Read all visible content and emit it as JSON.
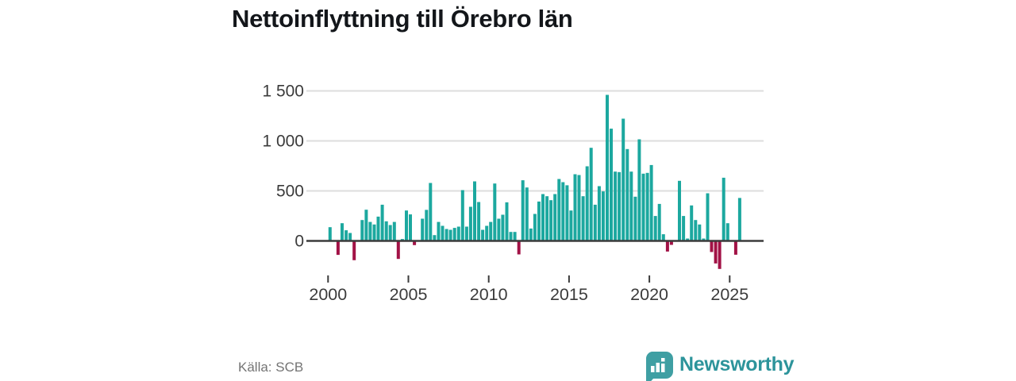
{
  "header": {
    "title": "Nettoinflyttning till Örebro län"
  },
  "footer": {
    "source": "Källa: SCB",
    "brand": "Newsworthy",
    "brand_icon": "bar-chart-speech-bubble-icon"
  },
  "colors": {
    "positive_bar": "#1ca89f",
    "negative_bar": "#a21246",
    "gridline": "#dddddd",
    "axis": "#3b3b3b",
    "title_text": "#13161a",
    "source_text": "#747474",
    "brand_teal": "#3f9fa3",
    "brand_text": "#2d949b"
  },
  "chart_data": {
    "type": "bar",
    "title": "Nettoinflyttning till Örebro län",
    "frequency": "quarterly",
    "start_period": "2000-Q1",
    "end_period": "2025-Q3",
    "xlabel": "",
    "ylabel": "",
    "legend": "none",
    "grid": "horizontal",
    "ylim": [
      -400,
      1575
    ],
    "x_ticks": {
      "values": [
        2000,
        2005,
        2010,
        2015,
        2020,
        2025
      ],
      "labels": [
        "2000",
        "2005",
        "2010",
        "2015",
        "2020",
        "2025"
      ]
    },
    "y_ticks": {
      "values": [
        0,
        500,
        1000,
        1500
      ],
      "labels": [
        "0",
        "500",
        "1 000",
        "1 500"
      ]
    },
    "series": [
      {
        "name": "Nettoinflyttning till Örebro län",
        "values": [
          137,
          0,
          -140,
          177,
          106,
          79,
          -193,
          0,
          209,
          312,
          190,
          164,
          243,
          362,
          196,
          159,
          190,
          -180,
          19,
          304,
          265,
          -42,
          0,
          222,
          310,
          579,
          58,
          190,
          151,
          119,
          111,
          130,
          143,
          508,
          143,
          341,
          595,
          389,
          111,
          151,
          190,
          574,
          222,
          262,
          386,
          90,
          90,
          -135,
          606,
          534,
          124,
          270,
          394,
          468,
          447,
          407,
          468,
          619,
          587,
          556,
          304,
          667,
          659,
          447,
          746,
          931,
          362,
          548,
          495,
          1460,
          1122,
          693,
          688,
          1222,
          918,
          693,
          442,
          1016,
          672,
          680,
          759,
          249,
          370,
          67,
          -106,
          -40,
          0,
          601,
          249,
          24,
          355,
          209,
          164,
          24,
          476,
          -111,
          -225,
          -280,
          632,
          177,
          0,
          -138,
          429
        ]
      }
    ]
  }
}
